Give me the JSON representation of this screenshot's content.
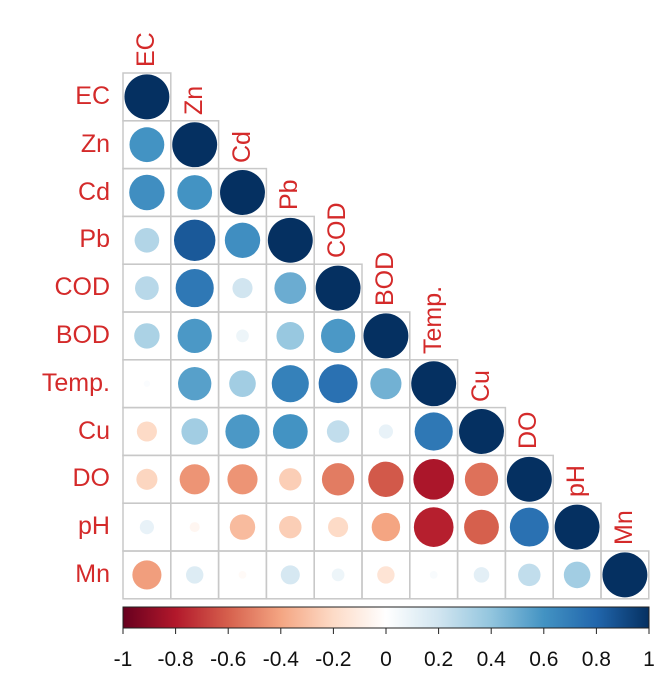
{
  "chart_data": {
    "type": "heatmap",
    "style": "corrplot-circle-lower",
    "title": "",
    "variables": [
      "EC",
      "Zn",
      "Cd",
      "Pb",
      "COD",
      "BOD",
      "Temp.",
      "Cu",
      "DO",
      "pH",
      "Mn"
    ],
    "matrix": [
      [
        1.0,
        null,
        null,
        null,
        null,
        null,
        null,
        null,
        null,
        null,
        null
      ],
      [
        0.6,
        1.0,
        null,
        null,
        null,
        null,
        null,
        null,
        null,
        null,
        null
      ],
      [
        0.62,
        0.6,
        1.0,
        null,
        null,
        null,
        null,
        null,
        null,
        null,
        null
      ],
      [
        0.3,
        0.85,
        0.62,
        1.0,
        null,
        null,
        null,
        null,
        null,
        null,
        null
      ],
      [
        0.28,
        0.72,
        0.2,
        0.5,
        1.0,
        null,
        null,
        null,
        null,
        null,
        null
      ],
      [
        0.32,
        0.58,
        0.08,
        0.38,
        0.58,
        1.0,
        null,
        null,
        null,
        null,
        null
      ],
      [
        0.02,
        0.55,
        0.35,
        0.68,
        0.75,
        0.48,
        1.0,
        null,
        null,
        null,
        null
      ],
      [
        -0.2,
        0.35,
        0.58,
        0.6,
        0.25,
        0.1,
        0.72,
        1.0,
        null,
        null,
        null
      ],
      [
        -0.22,
        -0.45,
        -0.45,
        -0.25,
        -0.52,
        -0.62,
        -0.82,
        -0.55,
        1.0,
        null,
        null
      ],
      [
        0.1,
        -0.05,
        -0.32,
        -0.25,
        -0.2,
        -0.4,
        -0.78,
        -0.6,
        0.75,
        1.0,
        null
      ],
      [
        -0.42,
        0.15,
        -0.03,
        0.18,
        0.08,
        -0.15,
        0.03,
        0.12,
        0.25,
        0.35,
        1.0
      ]
    ],
    "colorbar": {
      "range": [
        -1,
        1
      ],
      "ticks": [
        "-1",
        "-0.8",
        "-0.6",
        "-0.4",
        "-0.2",
        "0",
        "0.2",
        "0.4",
        "0.6",
        "0.8",
        "1"
      ],
      "position": "bottom"
    },
    "label_color": "#d42a2a",
    "grid_color": "#c8c8c8",
    "palette": [
      "#67001f",
      "#b2182b",
      "#d6604d",
      "#f4a582",
      "#fddbc7",
      "#ffffff",
      "#d1e5f0",
      "#92c5de",
      "#4393c3",
      "#2166ac",
      "#053061"
    ]
  }
}
